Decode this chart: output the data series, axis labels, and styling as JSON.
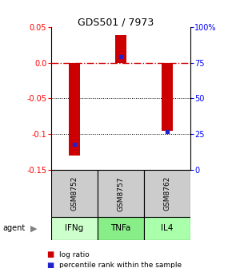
{
  "title": "GDS501 / 7973",
  "samples": [
    "GSM8752",
    "GSM8757",
    "GSM8762"
  ],
  "agents": [
    "IFNg",
    "TNFa",
    "IL4"
  ],
  "log_ratios": [
    -0.13,
    0.038,
    -0.095
  ],
  "percentile_ranks": [
    0.18,
    0.79,
    0.27
  ],
  "ylim": [
    -0.15,
    0.05
  ],
  "yticks_left": [
    -0.15,
    -0.1,
    -0.05,
    0.0,
    0.05
  ],
  "yticks_right": [
    0,
    25,
    50,
    75,
    100
  ],
  "bar_color": "#cc0000",
  "dot_color": "#2222cc",
  "agent_colors": [
    "#ccffcc",
    "#88ee88",
    "#aaffaa"
  ],
  "sample_bg": "#cccccc",
  "zero_line_color": "#cc0000",
  "bar_width": 0.25
}
